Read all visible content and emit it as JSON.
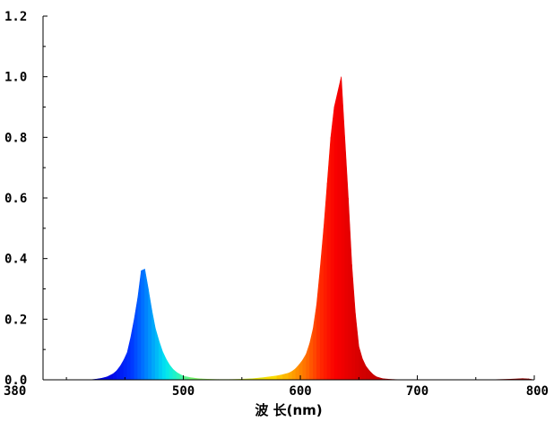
{
  "chart_data": {
    "type": "area",
    "title": "",
    "xlabel": "波 长(nm)",
    "ylabel": "",
    "xlim": [
      380,
      800
    ],
    "ylim": [
      0,
      1.2
    ],
    "grid": false,
    "legend": "none",
    "x_ticks": [
      380,
      500,
      600,
      700,
      800
    ],
    "x_tick_labels": [
      "380",
      "500",
      "600",
      "700",
      "800"
    ],
    "y_ticks": [
      0.0,
      0.2,
      0.4,
      0.6,
      0.8,
      1.0,
      1.2
    ],
    "y_tick_labels": [
      "0.0",
      "0.2",
      "0.4",
      "0.6",
      "0.8",
      "1.0",
      "1.2"
    ],
    "series": [
      {
        "x": [
          380,
          400,
          420,
          425,
          430,
          435,
          440,
          443,
          446,
          449,
          452,
          455,
          458,
          461,
          464,
          467,
          470,
          473,
          476,
          479,
          482,
          485,
          488,
          491,
          494,
          497,
          500,
          505,
          510,
          515,
          520,
          530,
          540,
          550,
          560,
          570,
          580,
          585,
          590,
          593,
          596,
          599,
          602,
          605,
          608,
          611,
          614,
          617,
          620,
          623,
          626,
          629,
          632,
          635,
          638,
          641,
          644,
          647,
          650,
          653,
          656,
          659,
          662,
          665,
          670,
          675,
          680,
          690,
          700,
          720,
          740,
          760,
          780,
          790,
          795,
          800
        ],
        "y": [
          0,
          0,
          0,
          0.002,
          0.005,
          0.01,
          0.02,
          0.03,
          0.045,
          0.065,
          0.09,
          0.14,
          0.2,
          0.27,
          0.36,
          0.365,
          0.3,
          0.23,
          0.17,
          0.13,
          0.095,
          0.07,
          0.05,
          0.035,
          0.025,
          0.018,
          0.012,
          0.008,
          0.005,
          0.003,
          0.002,
          0.001,
          0.001,
          0.002,
          0.004,
          0.008,
          0.013,
          0.017,
          0.022,
          0.028,
          0.037,
          0.05,
          0.065,
          0.085,
          0.12,
          0.17,
          0.25,
          0.37,
          0.5,
          0.65,
          0.8,
          0.9,
          0.95,
          1.0,
          0.8,
          0.6,
          0.38,
          0.22,
          0.11,
          0.07,
          0.045,
          0.03,
          0.018,
          0.01,
          0.004,
          0.002,
          0.001,
          0,
          0,
          0,
          0,
          0,
          0.002,
          0.004,
          0.003,
          0
        ]
      }
    ]
  }
}
